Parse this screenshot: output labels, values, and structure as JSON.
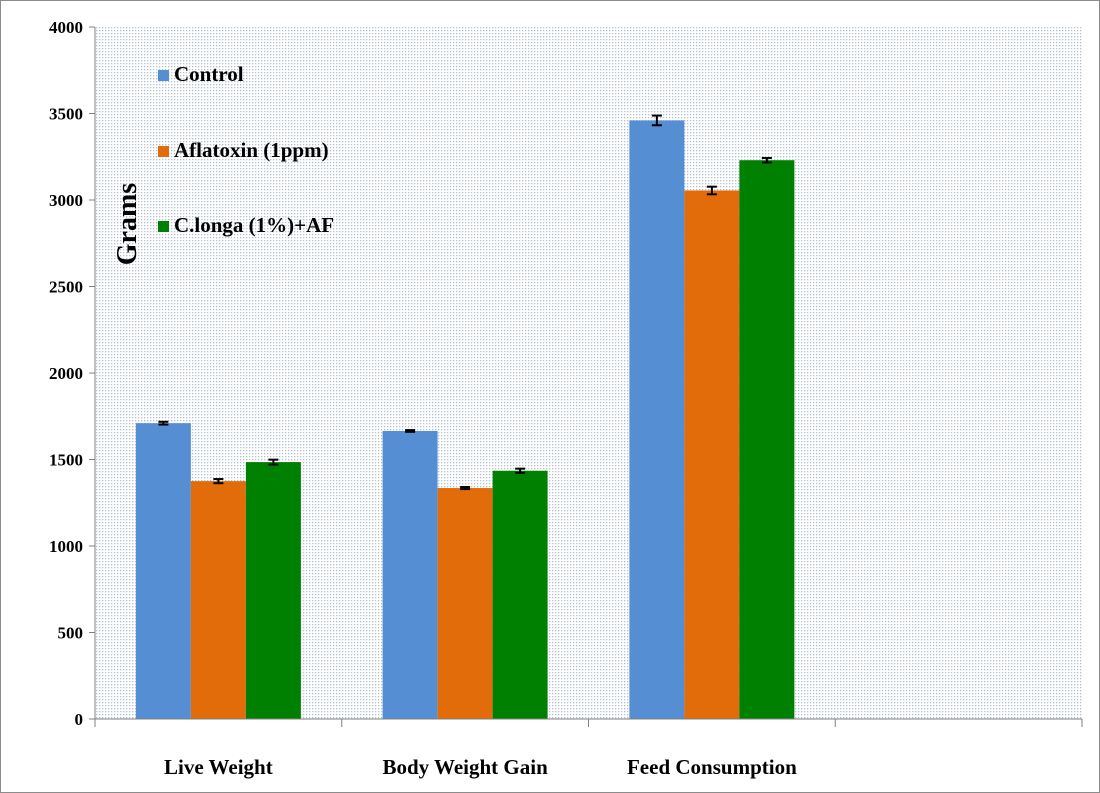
{
  "chart_data": {
    "type": "bar",
    "title": "",
    "xlabel": "",
    "ylabel": "Grams",
    "ylim": [
      0,
      4000
    ],
    "yticks": [
      0,
      500,
      1000,
      1500,
      2000,
      2500,
      3000,
      3500,
      4000
    ],
    "categories": [
      "Live Weight",
      "Body Weight Gain",
      "Feed Consumption",
      ""
    ],
    "series": [
      {
        "name": "Control",
        "color": "#568ed4",
        "values": [
          1710,
          1665,
          3460,
          null
        ],
        "errors": [
          8,
          5,
          28,
          null
        ]
      },
      {
        "name": "Aflatoxin (1ppm)",
        "color": "#e36c0a",
        "values": [
          1375,
          1335,
          3055,
          null
        ],
        "errors": [
          12,
          6,
          22,
          null
        ]
      },
      {
        "name": "C.longa (1%)+AF",
        "color": "#008000",
        "values": [
          1485,
          1435,
          3230,
          null
        ],
        "errors": [
          14,
          12,
          13,
          null
        ]
      }
    ],
    "legend_position": "top-left",
    "grid": false,
    "plot_background": "dotted light blue-gray"
  }
}
